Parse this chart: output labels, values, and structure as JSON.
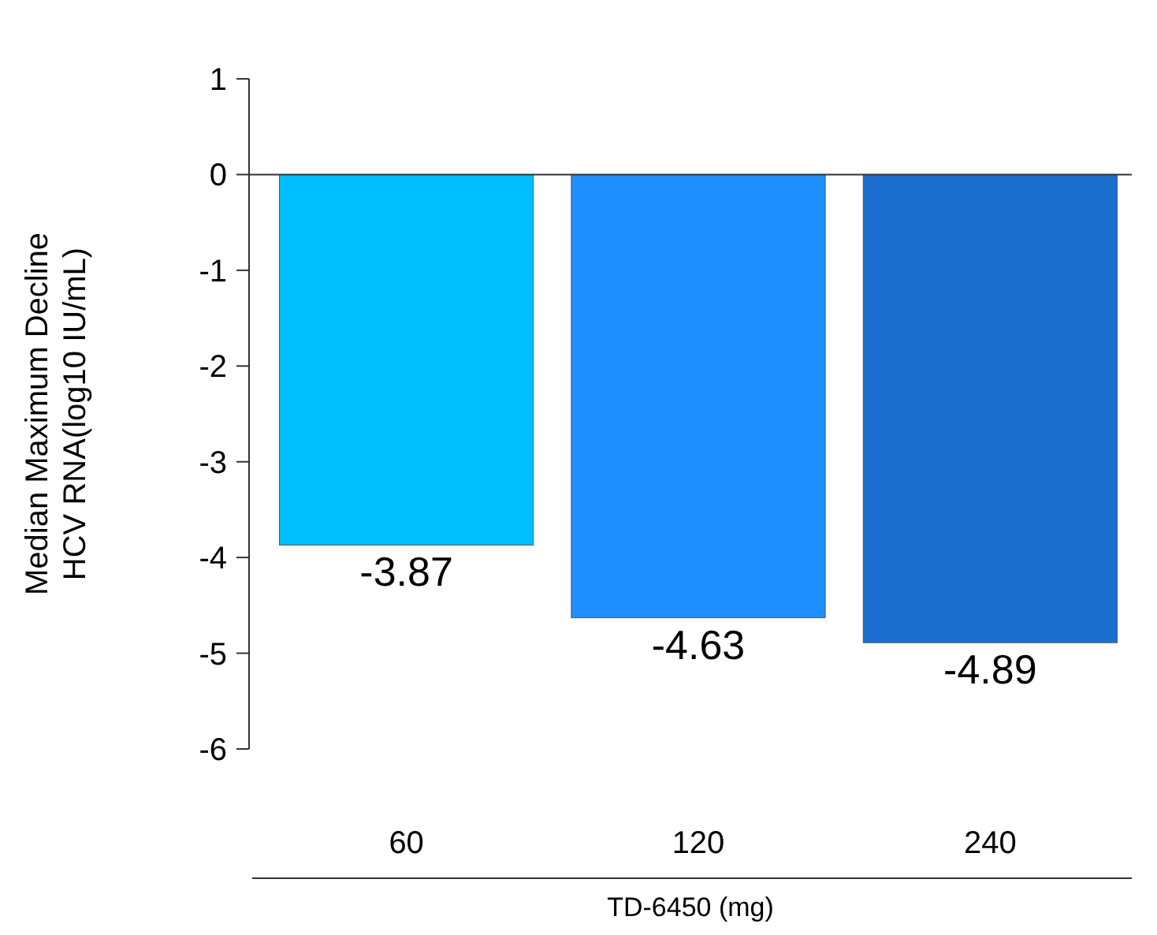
{
  "chart_data": {
    "type": "bar",
    "xlabel": "TD-6450 (mg)",
    "ylabel": "Median Maximum Decline\nHCV RNA(log10 IU/mL)",
    "categories": [
      "60",
      "120",
      "240"
    ],
    "values": [
      -3.87,
      -4.63,
      -4.89
    ],
    "colors": [
      "#00bfff",
      "#1e8fff",
      "#1c6fcf"
    ],
    "ylim": [
      -6,
      1
    ],
    "yticks": [
      -6,
      -5,
      -4,
      -3,
      -2,
      -1,
      0,
      1
    ],
    "data_labels": true
  }
}
